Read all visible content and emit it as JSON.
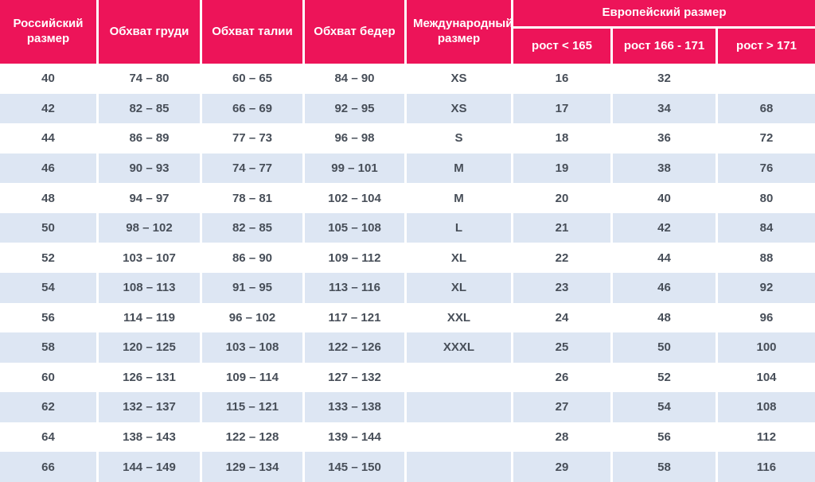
{
  "colors": {
    "header_bg": "#ed1459",
    "header_text": "#ffffff",
    "row_alt_bg": "#dde6f3",
    "row_bg": "#ffffff",
    "body_text": "#474e58"
  },
  "chart_data": {
    "type": "table",
    "header_group": "Европейский размер",
    "columns": [
      "Российский размер",
      "Обхват груди",
      "Обхват талии",
      "Обхват бедер",
      "Международный размер",
      "рост < 165",
      "рост 166 - 171",
      "рост > 171"
    ],
    "rows": [
      [
        "40",
        "74 – 80",
        "60 – 65",
        "84 – 90",
        "XS",
        "16",
        "32",
        ""
      ],
      [
        "42",
        "82 – 85",
        "66 – 69",
        "92 – 95",
        "XS",
        "17",
        "34",
        "68"
      ],
      [
        "44",
        "86 – 89",
        "77 – 73",
        "96 – 98",
        "S",
        "18",
        "36",
        "72"
      ],
      [
        "46",
        "90 – 93",
        "74 – 77",
        "99 – 101",
        "M",
        "19",
        "38",
        "76"
      ],
      [
        "48",
        "94 – 97",
        "78 – 81",
        "102 – 104",
        "M",
        "20",
        "40",
        "80"
      ],
      [
        "50",
        "98 – 102",
        "82 – 85",
        "105 – 108",
        "L",
        "21",
        "42",
        "84"
      ],
      [
        "52",
        "103 – 107",
        "86 – 90",
        "109 – 112",
        "XL",
        "22",
        "44",
        "88"
      ],
      [
        "54",
        "108 – 113",
        "91 – 95",
        "113 – 116",
        "XL",
        "23",
        "46",
        "92"
      ],
      [
        "56",
        "114 – 119",
        "96 – 102",
        "117 – 121",
        "XXL",
        "24",
        "48",
        "96"
      ],
      [
        "58",
        "120 – 125",
        "103 – 108",
        "122 – 126",
        "XXXL",
        "25",
        "50",
        "100"
      ],
      [
        "60",
        "126 – 131",
        "109 – 114",
        "127 – 132",
        "",
        "26",
        "52",
        "104"
      ],
      [
        "62",
        "132 – 137",
        "115 – 121",
        "133 – 138",
        "",
        "27",
        "54",
        "108"
      ],
      [
        "64",
        "138 – 143",
        "122 – 128",
        "139 – 144",
        "",
        "28",
        "56",
        "112"
      ],
      [
        "66",
        "144 – 149",
        "129 – 134",
        "145 – 150",
        "",
        "29",
        "58",
        "116"
      ]
    ]
  }
}
